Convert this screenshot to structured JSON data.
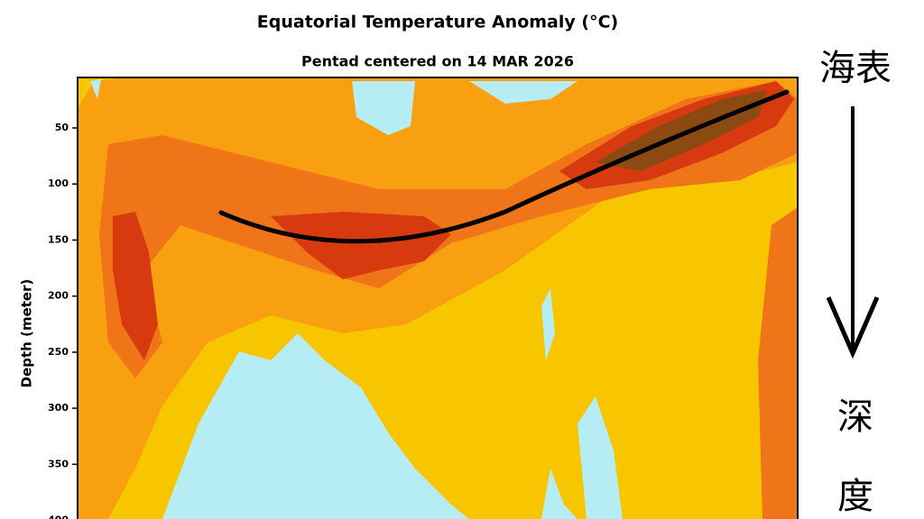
{
  "chart_data": {
    "type": "contour",
    "title": "Equatorial Temperature Anomaly (°C)",
    "subtitle": "Pentad centered on 14 MAR 2026",
    "y_label": "Depth (meter)",
    "ylim": [
      5,
      400
    ],
    "yticks": [
      50,
      100,
      150,
      200,
      250,
      300,
      350,
      400
    ],
    "annotations": [
      "海表",
      "深",
      "度"
    ]
  }
}
